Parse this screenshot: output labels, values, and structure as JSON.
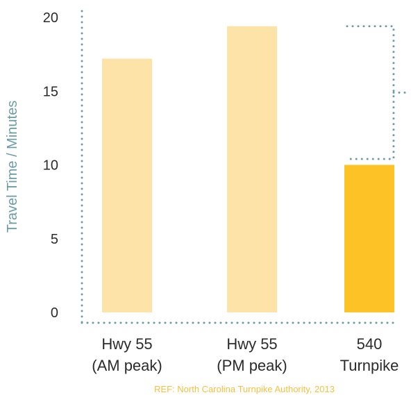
{
  "chart_data": {
    "type": "bar",
    "title": "",
    "xlabel": "",
    "ylabel": "Travel Time / Minutes",
    "ylim": [
      0,
      20
    ],
    "yticks": [
      0,
      5,
      10,
      15,
      20
    ],
    "categories": [
      [
        "Hwy 55",
        "(AM peak)"
      ],
      [
        "Hwy 55",
        "(PM peak)"
      ],
      [
        "540",
        "Turnpike"
      ]
    ],
    "values": [
      17.2,
      19.4,
      10.0
    ],
    "grid": false,
    "highlight_index": 2,
    "comparison_bracket": {
      "from_value": 19.4,
      "to_value": 10.4
    },
    "source": "REF: North Carolina Turnpike Authority, 2013"
  },
  "colors": {
    "bar": "#fde3a7",
    "bar_highlight": "#fcc226",
    "axis": "#6a9ca6",
    "label": "#6a9ca6",
    "source": "#f5c040",
    "text": "#2b2b2b"
  }
}
